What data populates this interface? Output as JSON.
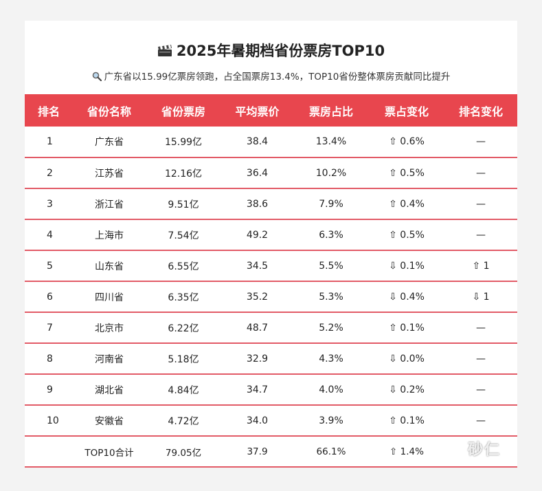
{
  "header": {
    "title": "2025年暑期档省份票房TOP10",
    "subtitle": "广东省以15.99亿票房领跑，占全国票房13.4%，TOP10省份整体票房贡献同比提升"
  },
  "icons": {
    "title_icon": "clapperboard-icon",
    "subtitle_icon": "magnifier-icon"
  },
  "colors": {
    "header_bg": "#e8464e",
    "row_divider": "#e25a66"
  },
  "table": {
    "columns": [
      "排名",
      "省份名称",
      "省份票房",
      "平均票价",
      "票房占比",
      "票占变化",
      "排名变化"
    ],
    "rows": [
      [
        "1",
        "广东省",
        "15.99亿",
        "38.4",
        "13.4%",
        "⇧ 0.6%",
        "—"
      ],
      [
        "2",
        "江苏省",
        "12.16亿",
        "36.4",
        "10.2%",
        "⇧ 0.5%",
        "—"
      ],
      [
        "3",
        "浙江省",
        "9.51亿",
        "38.6",
        "7.9%",
        "⇧ 0.4%",
        "—"
      ],
      [
        "4",
        "上海市",
        "7.54亿",
        "49.2",
        "6.3%",
        "⇧ 0.5%",
        "—"
      ],
      [
        "5",
        "山东省",
        "6.55亿",
        "34.5",
        "5.5%",
        "⇩ 0.1%",
        "⇧ 1"
      ],
      [
        "6",
        "四川省",
        "6.35亿",
        "35.2",
        "5.3%",
        "⇩ 0.4%",
        "⇩ 1"
      ],
      [
        "7",
        "北京市",
        "6.22亿",
        "48.7",
        "5.2%",
        "⇧ 0.1%",
        "—"
      ],
      [
        "8",
        "河南省",
        "5.18亿",
        "32.9",
        "4.3%",
        "⇩ 0.0%",
        "—"
      ],
      [
        "9",
        "湖北省",
        "4.84亿",
        "34.7",
        "4.0%",
        "⇩ 0.2%",
        "—"
      ],
      [
        "10",
        "安徽省",
        "4.72亿",
        "34.0",
        "3.9%",
        "⇧ 0.1%",
        "—"
      ]
    ],
    "total": [
      "",
      "TOP10合计",
      "79.05亿",
      "37.9",
      "66.1%",
      "⇧ 1.4%",
      ""
    ]
  },
  "watermark": "砂仁"
}
